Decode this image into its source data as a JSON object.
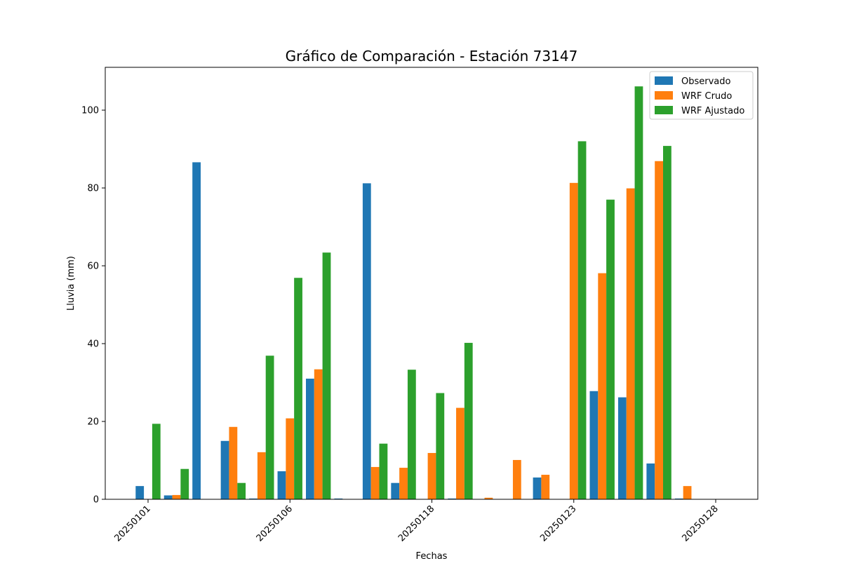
{
  "chart_data": {
    "type": "bar",
    "title": "Gráfico de Comparación - Estación 73147",
    "xlabel": "Fechas",
    "ylabel": "Lluvia (mm)",
    "ylim": [
      0,
      111
    ],
    "yticks": [
      0,
      20,
      40,
      60,
      80,
      100
    ],
    "xtick_labels": [
      "20250101",
      "20250106",
      "20250118",
      "20250123",
      "20250128"
    ],
    "xtick_index_positions": [
      0,
      5,
      10,
      15,
      20
    ],
    "legend_position": "top-right",
    "grid": false,
    "series": [
      {
        "name": "Observado",
        "color": "#1f77b4",
        "values": [
          3.4,
          1.0,
          86.6,
          15.0,
          0.2,
          7.2,
          31.0,
          0.2,
          81.2,
          4.2,
          0,
          0.2,
          0,
          0,
          5.6,
          0,
          27.8,
          26.2,
          9.2,
          0.2,
          0
        ]
      },
      {
        "name": "WRF Crudo",
        "color": "#ff7f0e",
        "values": [
          0,
          1.1,
          0,
          18.6,
          12.1,
          20.8,
          33.4,
          0,
          8.3,
          8.1,
          11.9,
          23.5,
          0.4,
          10.1,
          6.3,
          81.3,
          58.1,
          79.9,
          86.9,
          3.4,
          0
        ]
      },
      {
        "name": "WRF Ajustado",
        "color": "#2ca02c",
        "values": [
          19.4,
          7.8,
          0,
          4.2,
          36.9,
          56.9,
          63.4,
          0,
          14.3,
          33.3,
          27.3,
          40.2,
          0,
          0,
          0,
          92.0,
          77.0,
          106.1,
          90.8,
          0,
          0
        ]
      }
    ]
  }
}
